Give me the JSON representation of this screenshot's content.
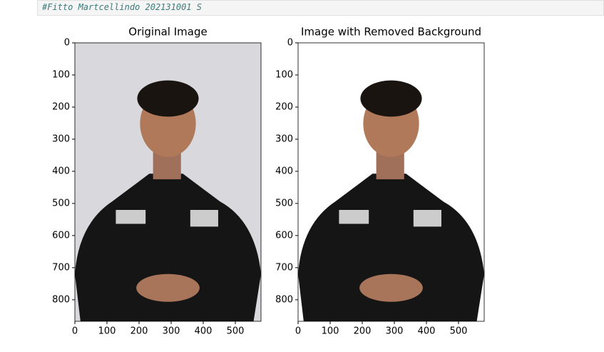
{
  "cell": {
    "code": "#Fitto Martcellindo 202131001 S"
  },
  "chart_data": [
    {
      "type": "image",
      "title": "Original Image",
      "xlim": [
        0,
        580
      ],
      "ylim": [
        867,
        0
      ],
      "xticks": [
        0,
        100,
        200,
        300,
        400,
        500
      ],
      "yticks": [
        0,
        100,
        200,
        300,
        400,
        500,
        600,
        700,
        800
      ],
      "background": "#d9d9dd"
    },
    {
      "type": "image",
      "title": "Image with Removed Background",
      "xlim": [
        0,
        580
      ],
      "ylim": [
        867,
        0
      ],
      "xticks": [
        0,
        100,
        200,
        300,
        400,
        500
      ],
      "yticks": [
        0,
        100,
        200,
        300,
        400,
        500,
        600,
        700,
        800
      ],
      "background": "#ffffff"
    }
  ]
}
